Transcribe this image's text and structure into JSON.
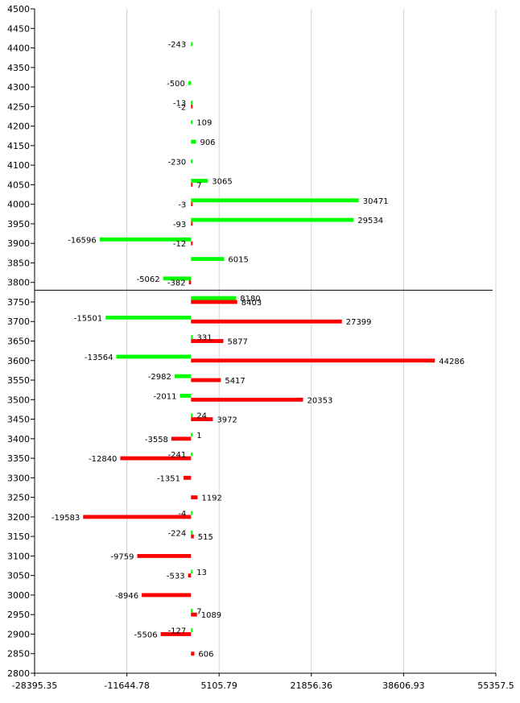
{
  "chart_data": {
    "type": "bar",
    "orientation": "horizontal",
    "title": "",
    "xlabel": "",
    "ylabel": "",
    "ylim": [
      2800,
      4500
    ],
    "y_ticks": [
      4500,
      4450,
      4400,
      4350,
      4300,
      4250,
      4200,
      4150,
      4100,
      4050,
      4000,
      3950,
      3900,
      3850,
      3800,
      3750,
      3700,
      3650,
      3600,
      3550,
      3500,
      3450,
      3400,
      3350,
      3300,
      3250,
      3200,
      3150,
      3100,
      3050,
      3000,
      2950,
      2900,
      2850,
      2800
    ],
    "xlim": [
      -28395.35,
      55357.5
    ],
    "x_ticks": [
      "-28395.35",
      "-11644.78",
      "5105.79",
      "21856.36",
      "38606.93",
      "55357.5"
    ],
    "grid": "vertical",
    "reference_line_y": 3780,
    "colors": {
      "green": "#00ff00",
      "red": "#ff0000"
    },
    "series": [
      {
        "name": "",
        "color": "green",
        "points": [
          {
            "y": 4410,
            "value": -243
          },
          {
            "y": 4310,
            "value": -500
          },
          {
            "y": 4260,
            "value": -13
          },
          {
            "y": 4210,
            "value": 109
          },
          {
            "y": 4160,
            "value": 906
          },
          {
            "y": 4110,
            "value": -230
          },
          {
            "y": 4060,
            "value": 3065
          },
          {
            "y": 4010,
            "value": 30471
          },
          {
            "y": 3960,
            "value": 29534
          },
          {
            "y": 3910,
            "value": -16596
          },
          {
            "y": 3860,
            "value": 6015
          },
          {
            "y": 3810,
            "value": -5062
          },
          {
            "y": 3760,
            "value": 8180
          },
          {
            "y": 3710,
            "value": -15501
          },
          {
            "y": 3660,
            "value": 331
          },
          {
            "y": 3610,
            "value": -13564
          },
          {
            "y": 3560,
            "value": -2982
          },
          {
            "y": 3510,
            "value": -2011
          },
          {
            "y": 3460,
            "value": 24
          },
          {
            "y": 3410,
            "value": 1
          },
          {
            "y": 3360,
            "value": -241
          },
          {
            "y": 3210,
            "value": -4
          },
          {
            "y": 3160,
            "value": -224
          },
          {
            "y": 3060,
            "value": 13
          },
          {
            "y": 2960,
            "value": 7
          },
          {
            "y": 2910,
            "value": -127
          }
        ]
      },
      {
        "name": "",
        "color": "red",
        "points": [
          {
            "y": 4250,
            "value": -2
          },
          {
            "y": 4050,
            "value": 7
          },
          {
            "y": 4000,
            "value": -3
          },
          {
            "y": 3950,
            "value": -93
          },
          {
            "y": 3900,
            "value": -12
          },
          {
            "y": 3800,
            "value": -382
          },
          {
            "y": 3750,
            "value": 8403
          },
          {
            "y": 3700,
            "value": 27399
          },
          {
            "y": 3650,
            "value": 5877
          },
          {
            "y": 3600,
            "value": 44286
          },
          {
            "y": 3550,
            "value": 5417
          },
          {
            "y": 3500,
            "value": 20353
          },
          {
            "y": 3450,
            "value": 3972
          },
          {
            "y": 3400,
            "value": -3558
          },
          {
            "y": 3350,
            "value": -12840
          },
          {
            "y": 3300,
            "value": -1351
          },
          {
            "y": 3250,
            "value": 1192
          },
          {
            "y": 3200,
            "value": -19583
          },
          {
            "y": 3150,
            "value": 515
          },
          {
            "y": 3100,
            "value": -9759
          },
          {
            "y": 3050,
            "value": -533
          },
          {
            "y": 3000,
            "value": -8946
          },
          {
            "y": 2950,
            "value": 1089
          },
          {
            "y": 2900,
            "value": -5506
          },
          {
            "y": 2850,
            "value": 606
          }
        ]
      }
    ]
  }
}
